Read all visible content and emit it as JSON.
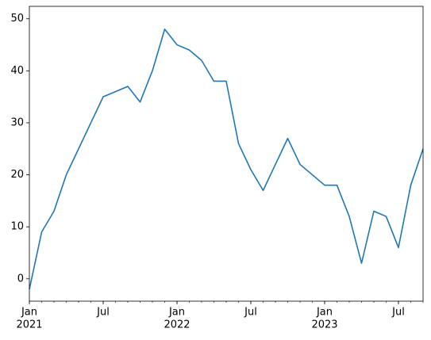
{
  "chart_data": {
    "type": "line",
    "x": [
      "2021-01",
      "2021-02",
      "2021-03",
      "2021-04",
      "2021-05",
      "2021-06",
      "2021-07",
      "2021-08",
      "2021-09",
      "2021-10",
      "2021-11",
      "2021-12",
      "2022-01",
      "2022-02",
      "2022-03",
      "2022-04",
      "2022-05",
      "2022-06",
      "2022-07",
      "2022-08",
      "2022-09",
      "2022-10",
      "2022-11",
      "2022-12",
      "2023-01",
      "2023-02",
      "2023-03",
      "2023-04",
      "2023-05",
      "2023-06",
      "2023-07",
      "2023-08",
      "2023-09"
    ],
    "series": [
      {
        "color": "#1f77b4",
        "values": [
          -2,
          9,
          13,
          20,
          25,
          30,
          35,
          36,
          37,
          34,
          40,
          48,
          45,
          44,
          42,
          38,
          38,
          26,
          21,
          17,
          22,
          27,
          22,
          20,
          18,
          18,
          12,
          3,
          13,
          12,
          6,
          18,
          25
        ]
      }
    ],
    "xlim": [
      "2021-01",
      "2023-09"
    ],
    "xticks": [
      {
        "value": "2021-01",
        "label": "Jan",
        "year": "2021"
      },
      {
        "value": "2021-07",
        "label": "Jul"
      },
      {
        "value": "2022-01",
        "label": "Jan",
        "year": "2022"
      },
      {
        "value": "2022-07",
        "label": "Jul"
      },
      {
        "value": "2023-01",
        "label": "Jan",
        "year": "2023"
      },
      {
        "value": "2023-07",
        "label": "Jul"
      }
    ],
    "ylim": [
      -4.3,
      52.4
    ],
    "yticks": [
      0,
      10,
      20,
      30,
      40,
      50
    ],
    "grid": false
  }
}
